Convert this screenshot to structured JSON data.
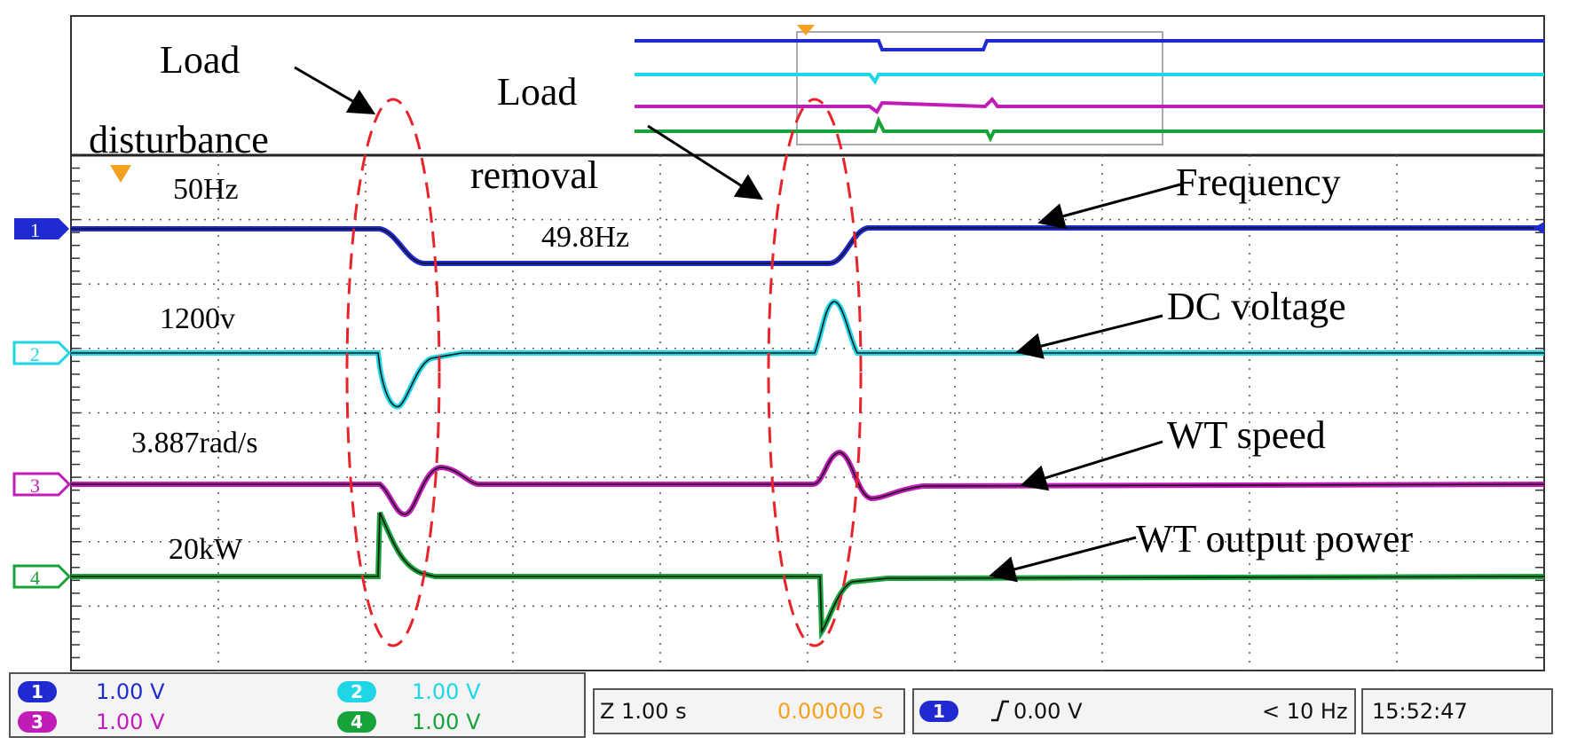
{
  "annotations": {
    "load_disturbance_line1": "Load",
    "load_disturbance_line2": "disturbance",
    "load_removal_line1": "Load",
    "load_removal_line2": "removal",
    "frequency": "Frequency",
    "dc_voltage": "DC voltage",
    "wt_speed": "WT speed",
    "wt_output_power": "WT output power"
  },
  "levels": {
    "freq_nominal": "50Hz",
    "freq_dip": "49.8Hz",
    "dc_voltage": "1200v",
    "wt_speed": "3.887rad/s",
    "wt_power": "20kW"
  },
  "channels": [
    {
      "id": "1",
      "scale": "1.00 V",
      "color": "#1f2bd0"
    },
    {
      "id": "2",
      "scale": "1.00 V",
      "color": "#1fd6e6"
    },
    {
      "id": "3",
      "scale": "1.00 V",
      "color": "#c21cb8"
    },
    {
      "id": "4",
      "scale": "1.00 V",
      "color": "#18a23a"
    }
  ],
  "timebase": {
    "scale": "Z 1.00 s",
    "position": "0.00000 s"
  },
  "trigger": {
    "source": "1",
    "level": "0.00 V",
    "rate": "< 10 Hz"
  },
  "clock": "15:52:47",
  "colors": {
    "trace_frequency": "#1f2bd0",
    "trace_dc": "#1fd6e6",
    "trace_speed": "#c21cb8",
    "trace_power": "#18a23a",
    "annotation_ellipse": "#e8232a",
    "trigger_marker": "#f4a020",
    "time_offset_text": "#f4a020"
  }
}
